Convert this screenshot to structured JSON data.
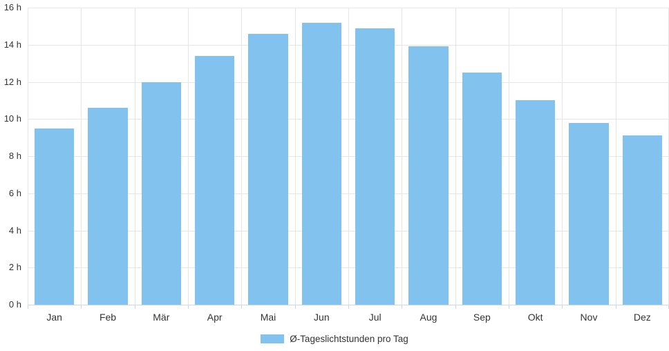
{
  "chart_data": {
    "type": "bar",
    "title": "",
    "categories": [
      "Jan",
      "Feb",
      "Mär",
      "Apr",
      "Mai",
      "Jun",
      "Jul",
      "Aug",
      "Sep",
      "Okt",
      "Nov",
      "Dez"
    ],
    "series": [
      {
        "name": "Ø-Tageslichtstunden pro Tag",
        "values": [
          9.5,
          10.6,
          12.0,
          13.4,
          14.6,
          15.2,
          14.9,
          13.9,
          12.5,
          11.0,
          9.8,
          9.1
        ]
      }
    ],
    "xlabel": "",
    "ylabel": "",
    "ylim": [
      0,
      16
    ],
    "ytick_step": 2,
    "ytick_suffix": " h",
    "ytick_labels": [
      "0 h",
      "2 h",
      "4 h",
      "6 h",
      "8 h",
      "10 h",
      "12 h",
      "14 h",
      "16 h"
    ],
    "grid": true,
    "legend_position": "bottom"
  },
  "legend": {
    "label": "Ø-Tageslichtstunden pro Tag"
  },
  "colors": {
    "bar": "#82c2ee",
    "grid": "#e6e6e6",
    "axis": "#ccd6eb",
    "text": "#333333",
    "background": "#ffffff"
  }
}
